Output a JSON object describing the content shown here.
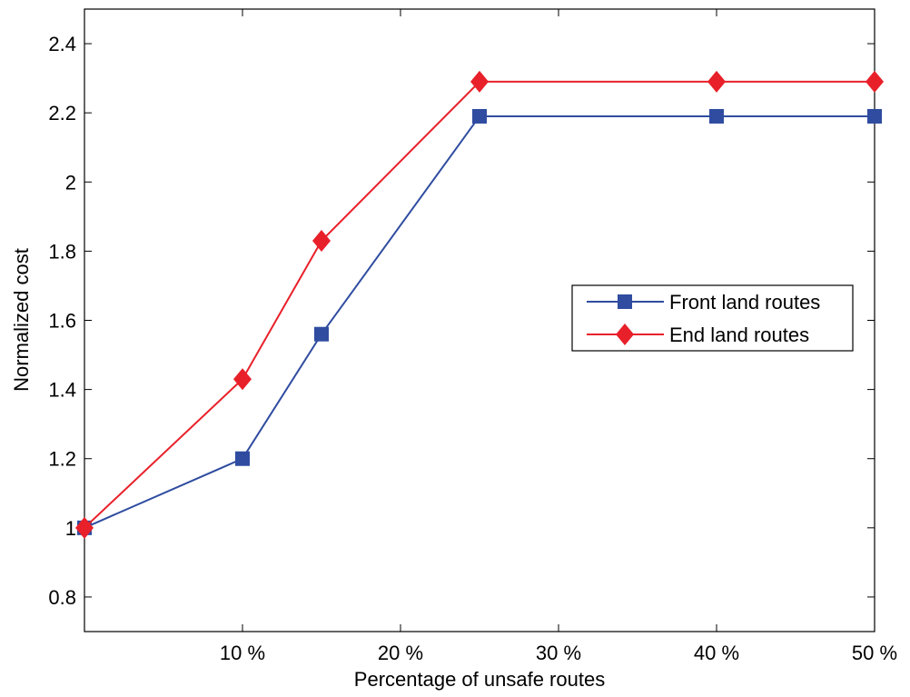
{
  "chart_data": {
    "type": "line",
    "xlabel": "Percentage of unsafe routes",
    "ylabel": "Normalized cost",
    "xlim": [
      0,
      50
    ],
    "ylim": [
      0.7,
      2.5
    ],
    "x_ticks": [
      10,
      20,
      30,
      40,
      50
    ],
    "x_tick_labels": [
      "10 %",
      "20 %",
      "30 %",
      "40 %",
      "50 %"
    ],
    "y_ticks": [
      0.8,
      1,
      1.2,
      1.4,
      1.6,
      1.8,
      2,
      2.2,
      2.4
    ],
    "y_tick_labels": [
      "0.8",
      "1",
      "1.2",
      "1.4",
      "1.6",
      "1.8",
      "2",
      "2.2",
      "2.4"
    ],
    "grid": false,
    "legend_position": "right",
    "series": [
      {
        "name": "Front land routes",
        "color": "#2F4CA0",
        "marker": "square",
        "x": [
          0,
          10,
          15,
          25,
          40,
          50
        ],
        "y": [
          1.0,
          1.2,
          1.56,
          2.19,
          2.19,
          2.19
        ]
      },
      {
        "name": "End land routes",
        "color": "#E8202A",
        "marker": "diamond",
        "x": [
          0,
          10,
          15,
          25,
          40,
          50
        ],
        "y": [
          1.0,
          1.43,
          1.83,
          2.29,
          2.29,
          2.29
        ]
      }
    ]
  }
}
